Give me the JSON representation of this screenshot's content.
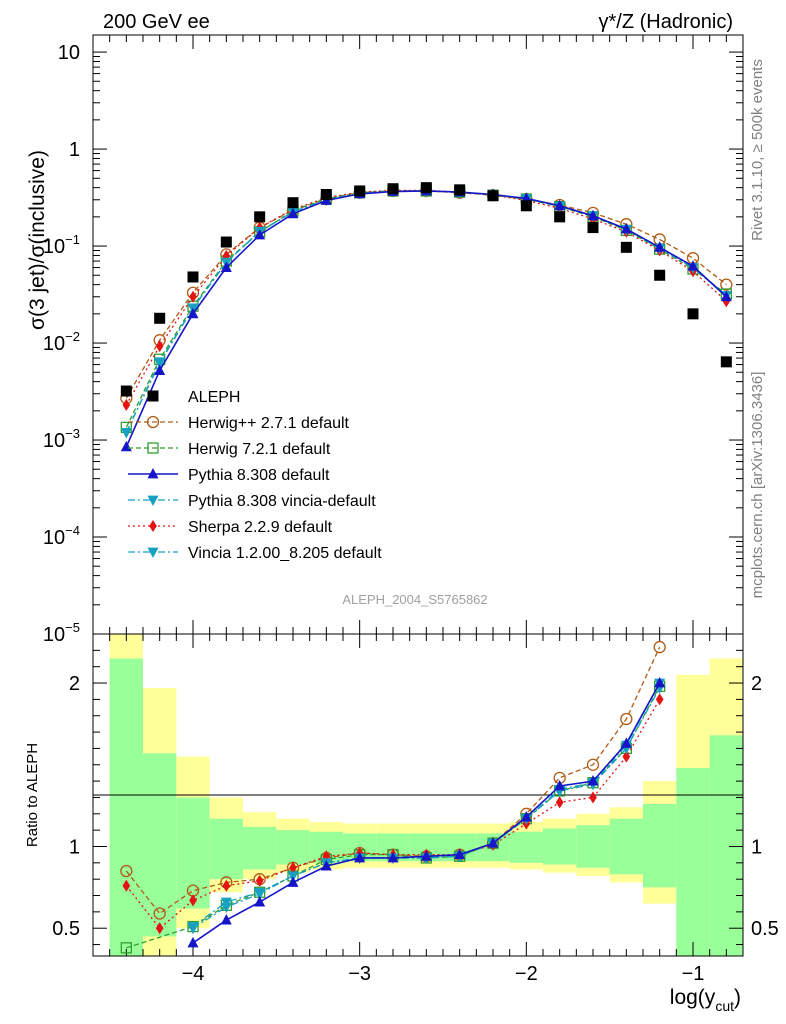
{
  "header": {
    "left": "200 GeV ee",
    "right": "γ*/Z (Hadronic)"
  },
  "side_labels": {
    "top": "Rivet 3.1.10, ≥ 500k events",
    "bottom": "mcplots.cern.ch [arXiv:1306.3436]"
  },
  "analysis_tag": "ALEPH_2004_S5765862",
  "colors": {
    "data": "#000000",
    "herwigpp": "#b05a14",
    "herwig7": "#2f9e2f",
    "pythia": "#1616c8",
    "pythia_vincia": "#18a0c0",
    "sherpa": "#e41414",
    "vincia": "#18a0c0",
    "band_inner": "#99ff99",
    "band_outer": "#ffff99"
  },
  "chart_data": [
    {
      "type": "scatter",
      "panel": "main",
      "ylabel": "σ(3 jet)/σ(inclusive)",
      "yscale": "log",
      "ylim": [
        1e-05,
        15
      ],
      "xlim": [
        -4.6,
        -0.7
      ],
      "y_ticks": [
        {
          "value": 1e-05,
          "base": "10",
          "exp": "−5"
        },
        {
          "value": 0.0001,
          "base": "10",
          "exp": "−4"
        },
        {
          "value": 0.001,
          "base": "10",
          "exp": "−3"
        },
        {
          "value": 0.01,
          "base": "10",
          "exp": "−2"
        },
        {
          "value": 0.1,
          "base": "10",
          "exp": "−1"
        },
        {
          "value": 1,
          "base": "1",
          "exp": ""
        },
        {
          "value": 10,
          "base": "10",
          "exp": ""
        }
      ],
      "legend": {
        "position": "bottom-left"
      },
      "series": [
        {
          "key": "data",
          "name": "ALEPH",
          "marker": "square",
          "line": "none",
          "color": "#000000",
          "x": [
            -4.4,
            -4.2,
            -4.0,
            -3.8,
            -3.6,
            -3.4,
            -3.2,
            -3.0,
            -2.8,
            -2.6,
            -2.4,
            -2.2,
            -2.0,
            -1.8,
            -1.6,
            -1.4,
            -1.2,
            -1.0,
            -0.8
          ],
          "y": [
            0.0032,
            0.018,
            0.048,
            0.11,
            0.2,
            0.28,
            0.34,
            0.37,
            0.39,
            0.4,
            0.38,
            0.33,
            0.26,
            0.2,
            0.155,
            0.097,
            0.05,
            0.02,
            0.0064
          ]
        },
        {
          "key": "herwigpp",
          "name": "Herwig++ 2.7.1 default",
          "marker": "open-circle",
          "line": "dash",
          "color": "#b05a14",
          "x": [
            -4.4,
            -4.2,
            -4.0,
            -3.8,
            -3.6,
            -3.4,
            -3.2,
            -3.0,
            -2.8,
            -2.6,
            -2.4,
            -2.2,
            -2.0,
            -1.8,
            -1.6,
            -1.4,
            -1.2,
            -1.0,
            -0.8
          ],
          "y": [
            0.0027,
            0.0107,
            0.033,
            0.082,
            0.155,
            0.235,
            0.305,
            0.355,
            0.37,
            0.37,
            0.355,
            0.335,
            0.305,
            0.265,
            0.22,
            0.168,
            0.117,
            0.075,
            0.04
          ]
        },
        {
          "key": "herwig7",
          "name": "Herwig 7.2.1 default",
          "marker": "open-square",
          "line": "dash",
          "color": "#2f9e2f",
          "x": [
            -4.4,
            -4.2,
            -4.0,
            -3.8,
            -3.6,
            -3.4,
            -3.2,
            -3.0,
            -2.8,
            -2.6,
            -2.4,
            -2.2,
            -2.0,
            -1.8,
            -1.6,
            -1.4,
            -1.2,
            -1.0,
            -0.8
          ],
          "y": [
            0.00135,
            0.0068,
            0.024,
            0.07,
            0.14,
            0.23,
            0.31,
            0.355,
            0.37,
            0.37,
            0.36,
            0.335,
            0.305,
            0.255,
            0.2,
            0.145,
            0.093,
            0.058,
            0.032
          ]
        },
        {
          "key": "pythia",
          "name": "Pythia 8.308 default",
          "marker": "triangle-up",
          "line": "solid",
          "color": "#1616c8",
          "x": [
            -4.4,
            -4.2,
            -4.0,
            -3.8,
            -3.6,
            -3.4,
            -3.2,
            -3.0,
            -2.8,
            -2.6,
            -2.4,
            -2.2,
            -2.0,
            -1.8,
            -1.6,
            -1.4,
            -1.2,
            -1.0,
            -0.8
          ],
          "y": [
            0.00085,
            0.0052,
            0.02,
            0.06,
            0.13,
            0.215,
            0.295,
            0.345,
            0.365,
            0.37,
            0.36,
            0.34,
            0.31,
            0.26,
            0.205,
            0.15,
            0.097,
            0.062,
            0.03
          ]
        },
        {
          "key": "pythia_vincia",
          "name": "Pythia 8.308 vincia-default",
          "marker": "triangle-down",
          "line": "dashdot",
          "color": "#18a0c0",
          "x": [
            -4.4,
            -4.2,
            -4.0,
            -3.8,
            -3.6,
            -3.4,
            -3.2,
            -3.0,
            -2.8,
            -2.6,
            -2.4,
            -2.2,
            -2.0,
            -1.8,
            -1.6,
            -1.4,
            -1.2,
            -1.0,
            -0.8
          ],
          "y": [
            0.0012,
            0.0062,
            0.023,
            0.068,
            0.14,
            0.225,
            0.3,
            0.35,
            0.368,
            0.37,
            0.36,
            0.338,
            0.308,
            0.258,
            0.205,
            0.148,
            0.095,
            0.06,
            0.031
          ]
        },
        {
          "key": "sherpa",
          "name": "Sherpa 2.2.9 default",
          "marker": "diamond",
          "line": "dot",
          "color": "#e41414",
          "x": [
            -4.4,
            -4.2,
            -4.0,
            -3.8,
            -3.6,
            -3.4,
            -3.2,
            -3.0,
            -2.8,
            -2.6,
            -2.4,
            -2.2,
            -2.0,
            -1.8,
            -1.6,
            -1.4,
            -1.2,
            -1.0,
            -0.8
          ],
          "y": [
            0.0023,
            0.0093,
            0.03,
            0.079,
            0.155,
            0.24,
            0.315,
            0.36,
            0.375,
            0.375,
            0.36,
            0.335,
            0.295,
            0.245,
            0.19,
            0.14,
            0.09,
            0.055,
            0.027
          ]
        },
        {
          "key": "vincia",
          "name": "Vincia 1.2.00_8.205 default",
          "marker": "triangle-down",
          "line": "dashdot",
          "color": "#18a0c0",
          "x": [
            -4.4,
            -4.2,
            -4.0,
            -3.8,
            -3.6,
            -3.4,
            -3.2,
            -3.0,
            -2.8,
            -2.6,
            -2.4,
            -2.2,
            -2.0,
            -1.8,
            -1.6,
            -1.4,
            -1.2,
            -1.0,
            -0.8
          ],
          "y": [
            0.0012,
            0.0064,
            0.023,
            0.068,
            0.142,
            0.225,
            0.3,
            0.35,
            0.368,
            0.37,
            0.36,
            0.338,
            0.308,
            0.258,
            0.205,
            0.148,
            0.095,
            0.06,
            0.031
          ]
        }
      ]
    },
    {
      "type": "scatter",
      "panel": "ratio",
      "ylabel": "Ratio to ALEPH",
      "xlabel_main": "log(y",
      "xlabel_sub": "cut",
      "xlabel_close": ")",
      "ylim": [
        0.33,
        2.3
      ],
      "xlim": [
        -4.6,
        -0.7
      ],
      "x_ticks": [
        {
          "value": -4,
          "label": "−4"
        },
        {
          "value": -3,
          "label": "−3"
        },
        {
          "value": -2,
          "label": "−2"
        },
        {
          "value": -1,
          "label": "−1"
        }
      ],
      "y_ticks": [
        {
          "value": 0.5,
          "label": "0.5"
        },
        {
          "value": 1,
          "label": "1"
        },
        {
          "value": 2,
          "label": "2"
        }
      ],
      "bands": {
        "bin_edges": [
          -4.5,
          -4.3,
          -4.1,
          -3.9,
          -3.7,
          -3.5,
          -3.3,
          -3.1,
          -2.9,
          -2.7,
          -2.5,
          -2.3,
          -2.1,
          -1.9,
          -1.7,
          -1.5,
          -1.3,
          -1.1,
          -0.9,
          -0.7
        ],
        "outer_low": [
          0.33,
          0.33,
          0.5,
          0.72,
          0.8,
          0.84,
          0.86,
          0.87,
          0.87,
          0.87,
          0.87,
          0.87,
          0.86,
          0.84,
          0.82,
          0.78,
          0.65,
          0.33,
          0.33
        ],
        "outer_high": [
          2.3,
          1.97,
          1.55,
          1.3,
          1.21,
          1.17,
          1.15,
          1.14,
          1.14,
          1.14,
          1.14,
          1.14,
          1.15,
          1.17,
          1.2,
          1.24,
          1.4,
          2.05,
          2.15
        ],
        "inner_low": [
          0.33,
          0.45,
          0.62,
          0.8,
          0.86,
          0.89,
          0.9,
          0.91,
          0.91,
          0.91,
          0.91,
          0.91,
          0.9,
          0.89,
          0.87,
          0.83,
          0.75,
          0.33,
          0.33
        ],
        "inner_high": [
          2.15,
          1.57,
          1.3,
          1.17,
          1.12,
          1.1,
          1.09,
          1.08,
          1.08,
          1.08,
          1.08,
          1.08,
          1.09,
          1.11,
          1.13,
          1.17,
          1.26,
          1.48,
          1.68
        ]
      },
      "series": [
        {
          "key": "herwigpp",
          "marker": "open-circle",
          "line": "dash",
          "color": "#b05a14",
          "x": [
            -4.4,
            -4.2,
            -4.0,
            -3.8,
            -3.6,
            -3.4,
            -3.2,
            -3.0,
            -2.8,
            -2.6,
            -2.4,
            -2.2,
            -2.0,
            -1.8,
            -1.6,
            -1.4,
            -1.2
          ],
          "y": [
            0.85,
            0.59,
            0.73,
            0.78,
            0.8,
            0.87,
            0.93,
            0.96,
            0.95,
            0.94,
            0.95,
            1.02,
            1.2,
            1.42,
            1.5,
            1.78,
            2.22
          ]
        },
        {
          "key": "herwig7",
          "marker": "open-square",
          "line": "dash",
          "color": "#2f9e2f",
          "x": [
            -4.4,
            -4.0,
            -3.8,
            -3.6,
            -3.4,
            -3.2,
            -3.0,
            -2.8,
            -2.6,
            -2.4,
            -2.2,
            -2.0,
            -1.8,
            -1.6,
            -1.4,
            -1.2
          ],
          "y": [
            0.38,
            0.51,
            0.64,
            0.72,
            0.82,
            0.92,
            0.95,
            0.95,
            0.93,
            0.94,
            1.02,
            1.17,
            1.34,
            1.39,
            1.6,
            1.98
          ]
        },
        {
          "key": "pythia",
          "marker": "triangle-up",
          "line": "solid",
          "color": "#1616c8",
          "x": [
            -4.0,
            -3.8,
            -3.6,
            -3.4,
            -3.2,
            -3.0,
            -2.8,
            -2.6,
            -2.4,
            -2.2,
            -2.0,
            -1.8,
            -1.6,
            -1.4,
            -1.2
          ],
          "y": [
            0.41,
            0.55,
            0.66,
            0.78,
            0.88,
            0.93,
            0.93,
            0.94,
            0.95,
            1.02,
            1.18,
            1.37,
            1.4,
            1.63,
            2.0
          ]
        },
        {
          "key": "pythia_vincia",
          "marker": "triangle-down",
          "line": "dashdot",
          "color": "#18a0c0",
          "x": [
            -4.0,
            -3.8,
            -3.6,
            -3.4,
            -3.2,
            -3.0,
            -2.8,
            -2.6,
            -2.4,
            -2.2,
            -2.0,
            -1.8,
            -1.6,
            -1.4,
            -1.2
          ],
          "y": [
            0.5,
            0.63,
            0.71,
            0.82,
            0.9,
            0.93,
            0.93,
            0.93,
            0.94,
            1.02,
            1.17,
            1.34,
            1.38,
            1.6,
            1.97
          ]
        },
        {
          "key": "sherpa",
          "marker": "diamond",
          "line": "dot",
          "color": "#e41414",
          "x": [
            -4.4,
            -4.2,
            -4.0,
            -3.8,
            -3.6,
            -3.4,
            -3.2,
            -3.0,
            -2.8,
            -2.6,
            -2.4,
            -2.2,
            -2.0,
            -1.8,
            -1.6,
            -1.4,
            -1.2
          ],
          "y": [
            0.76,
            0.5,
            0.67,
            0.76,
            0.79,
            0.87,
            0.94,
            0.96,
            0.95,
            0.95,
            0.95,
            1.01,
            1.14,
            1.27,
            1.3,
            1.55,
            1.9
          ]
        },
        {
          "key": "vincia",
          "marker": "triangle-down",
          "line": "dashdot",
          "color": "#18a0c0",
          "x": [
            -4.0,
            -3.8,
            -3.6,
            -3.4,
            -3.2,
            -3.0,
            -2.8,
            -2.6,
            -2.4,
            -2.2,
            -2.0,
            -1.8,
            -1.6,
            -1.4,
            -1.2
          ],
          "y": [
            0.51,
            0.66,
            0.72,
            0.82,
            0.9,
            0.93,
            0.93,
            0.93,
            0.94,
            1.02,
            1.17,
            1.35,
            1.39,
            1.62,
            2.0
          ]
        }
      ]
    }
  ]
}
